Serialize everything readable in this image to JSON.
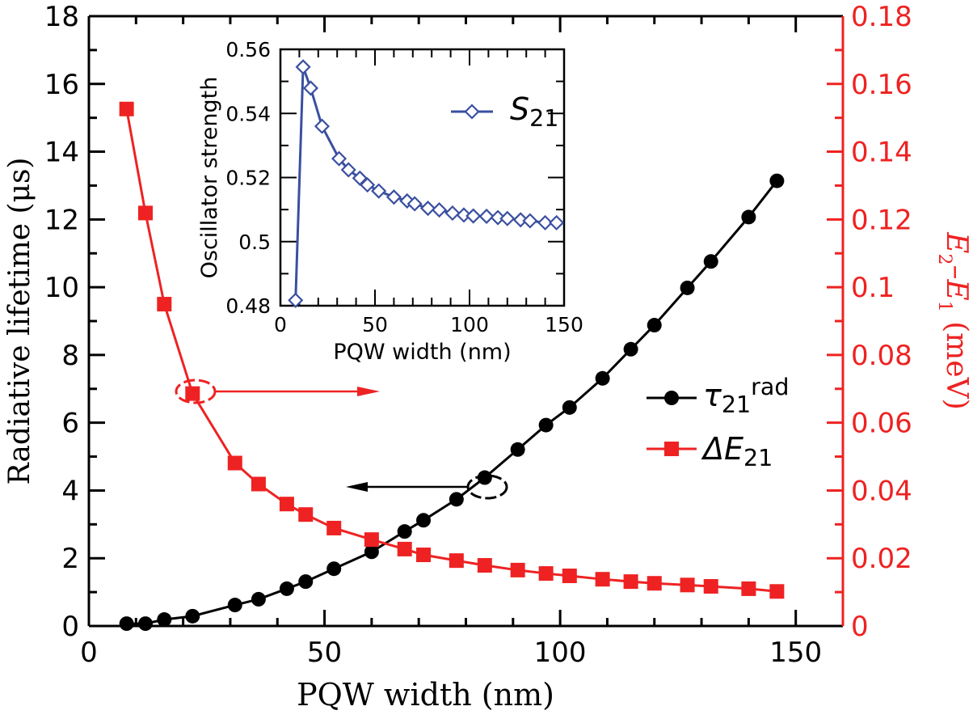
{
  "chart_data": [
    {
      "type": "line",
      "xlabel": "PQW width (nm)",
      "ylabel": "Radiative lifetime (μs)",
      "ylabel_right": {
        "main": "E",
        "sub1": "2",
        "dash": "–E",
        "sub2": "1",
        "unit": " (meV)"
      },
      "xlim": [
        0,
        160
      ],
      "ylim": [
        0,
        18
      ],
      "ylim_right": [
        0,
        0.18
      ],
      "xticks": [
        "0",
        "50",
        "100",
        "150"
      ],
      "yticks": [
        "0",
        "2",
        "4",
        "6",
        "8",
        "10",
        "12",
        "14",
        "16",
        "18"
      ],
      "yticks_right": [
        "0",
        "0.02",
        "0.04",
        "0.06",
        "0.08",
        "0.1",
        "0.12",
        "0.14",
        "0.16",
        "0.18"
      ],
      "legend_position": "center-right",
      "x": [
        8,
        12,
        16,
        22,
        31,
        36,
        42,
        46,
        52,
        60,
        67,
        71,
        78,
        84,
        91,
        97,
        102,
        109,
        115,
        120,
        127,
        132,
        140,
        146
      ],
      "series": [
        {
          "name": "τ21rad",
          "legend": {
            "main": "τ",
            "sub": "21",
            "sup": "rad"
          },
          "axis": "left",
          "color": "#000000",
          "marker": "circle",
          "values": [
            0.07,
            0.07,
            0.19,
            0.29,
            0.62,
            0.79,
            1.1,
            1.31,
            1.69,
            2.19,
            2.79,
            3.12,
            3.74,
            4.38,
            5.21,
            5.93,
            6.45,
            7.31,
            8.17,
            8.88,
            9.98,
            10.76,
            12.07,
            13.14
          ]
        },
        {
          "name": "ΔE21",
          "legend": {
            "main": "ΔE",
            "sub": "21"
          },
          "axis": "right",
          "color": "#ee2222",
          "marker": "square",
          "values": [
            0.1526,
            0.1219,
            0.095,
            0.0686,
            0.0481,
            0.0419,
            0.036,
            0.0329,
            0.0289,
            0.0255,
            0.0227,
            0.021,
            0.0193,
            0.0179,
            0.0165,
            0.0155,
            0.0148,
            0.0138,
            0.0131,
            0.0126,
            0.0121,
            0.0117,
            0.011,
            0.0102
          ]
        }
      ]
    },
    {
      "type": "line",
      "inset": true,
      "xlabel": "PQW width (nm)",
      "ylabel": "Oscillator strength",
      "xlim": [
        0,
        150
      ],
      "ylim": [
        0.48,
        0.56
      ],
      "xticks": [
        "0",
        "50",
        "100",
        "150"
      ],
      "yticks": [
        "0.48",
        "0.5",
        "0.52",
        "0.54",
        "0.56"
      ],
      "legend_position": "top-right",
      "x": [
        8,
        12,
        16,
        22,
        31,
        36,
        42,
        46,
        52,
        60,
        67,
        71,
        78,
        84,
        91,
        97,
        102,
        109,
        115,
        120,
        127,
        132,
        140,
        146
      ],
      "series": [
        {
          "name": "S21",
          "legend": {
            "main": "S",
            "sub": "21"
          },
          "color": "#3a4fa0",
          "marker": "diamond-open",
          "values": [
            0.4817,
            0.5545,
            0.5479,
            0.536,
            0.5259,
            0.5224,
            0.5198,
            0.5177,
            0.5158,
            0.5139,
            0.5127,
            0.5118,
            0.5104,
            0.5099,
            0.5089,
            0.5083,
            0.508,
            0.5079,
            0.5075,
            0.5072,
            0.5068,
            0.5065,
            0.5059,
            0.5059
          ]
        }
      ]
    }
  ]
}
